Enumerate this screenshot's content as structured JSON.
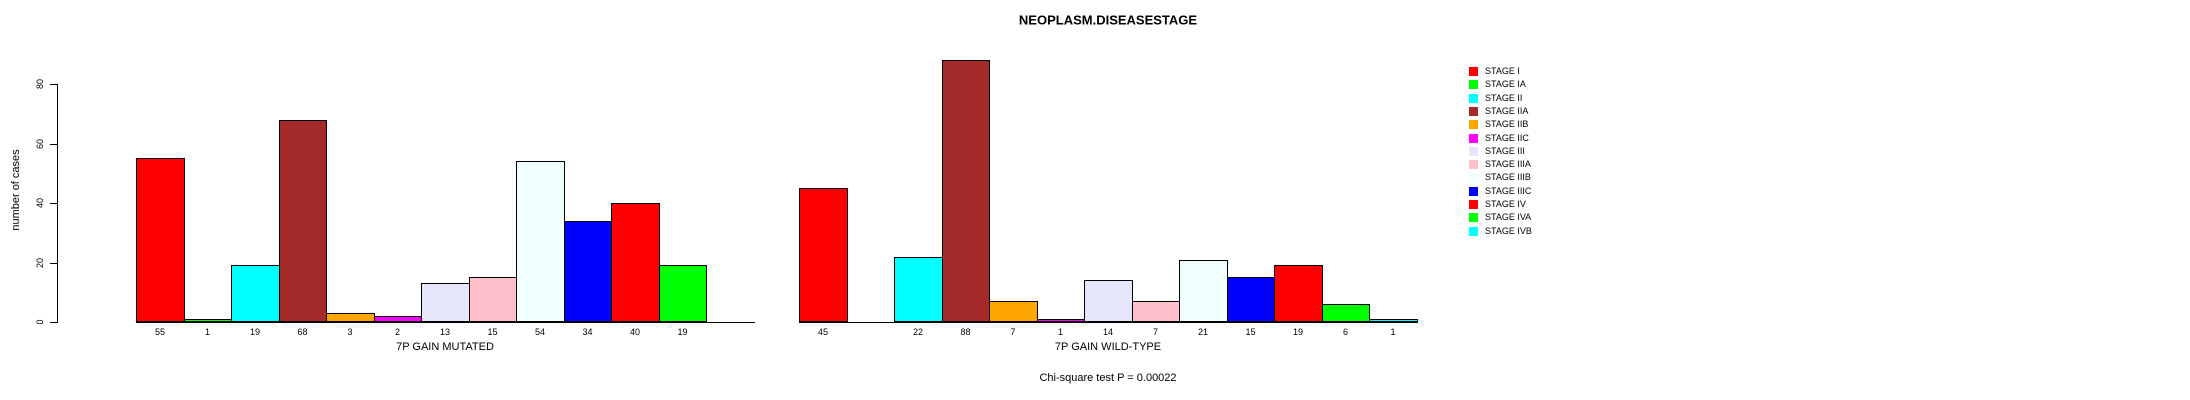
{
  "title": "NEOPLASM.DISEASESTAGE",
  "footer_note": "Chi-square test P = 0.00022",
  "y_axis": {
    "label": "number of cases",
    "ticks": [
      0,
      20,
      40,
      60,
      80
    ]
  },
  "legend": {
    "position": "right",
    "entries": [
      {
        "label": "STAGE I",
        "color": "#FF0000"
      },
      {
        "label": "STAGE IA",
        "color": "#00FF00"
      },
      {
        "label": "STAGE II",
        "color": "#00FFFF"
      },
      {
        "label": "STAGE IIA",
        "color": "#A52A2A"
      },
      {
        "label": "STAGE IIB",
        "color": "#FFA500"
      },
      {
        "label": "STAGE IIC",
        "color": "#FF00FF"
      },
      {
        "label": "STAGE III",
        "color": "#E6E6FA"
      },
      {
        "label": "STAGE IIIA",
        "color": "#FFC0CB"
      },
      {
        "label": "STAGE IIIB",
        "color": "#F0FFFF"
      },
      {
        "label": "STAGE IIIC",
        "color": "#0000FF"
      },
      {
        "label": "STAGE IV",
        "color": "#FF0000"
      },
      {
        "label": "STAGE IVA",
        "color": "#00FF00"
      },
      {
        "label": "STAGE IVB",
        "color": "#00FFFF"
      }
    ]
  },
  "chart_data": [
    {
      "type": "bar",
      "title": "NEOPLASM.DISEASESTAGE",
      "xlabel": "7P GAIN MUTATED",
      "ylabel": "number of cases",
      "ylim": [
        0,
        88
      ],
      "grid": false,
      "legend_position": "right",
      "categories": [
        "STAGE I",
        "STAGE IA",
        "STAGE II",
        "STAGE IIA",
        "STAGE IIB",
        "STAGE IIC",
        "STAGE III",
        "STAGE IIIA",
        "STAGE IIIB",
        "STAGE IIIC",
        "STAGE IV",
        "STAGE IVA",
        "STAGE IVB"
      ],
      "values": [
        55,
        1,
        19,
        68,
        3,
        2,
        13,
        15,
        54,
        34,
        40,
        19,
        0
      ],
      "bar_labels": [
        "55",
        "1",
        "19",
        "68",
        "3",
        "2",
        "13",
        "15",
        "54",
        "34",
        "40",
        "19",
        ""
      ],
      "colors": [
        "#FF0000",
        "#00FF00",
        "#00FFFF",
        "#A52A2A",
        "#FFA500",
        "#FF00FF",
        "#E6E6FA",
        "#FFC0CB",
        "#F0FFFF",
        "#0000FF",
        "#FF0000",
        "#00FF00",
        "#00FFFF"
      ]
    },
    {
      "type": "bar",
      "title": "NEOPLASM.DISEASESTAGE",
      "xlabel": "7P GAIN WILD-TYPE",
      "ylabel": "number of cases",
      "ylim": [
        0,
        88
      ],
      "grid": false,
      "legend_position": "right",
      "categories": [
        "STAGE I",
        "STAGE IA",
        "STAGE II",
        "STAGE IIA",
        "STAGE IIB",
        "STAGE IIC",
        "STAGE III",
        "STAGE IIIA",
        "STAGE IIIB",
        "STAGE IIIC",
        "STAGE IV",
        "STAGE IVA",
        "STAGE IVB"
      ],
      "values": [
        45,
        0,
        22,
        88,
        7,
        1,
        14,
        7,
        21,
        15,
        19,
        6,
        1
      ],
      "bar_labels": [
        "45",
        "",
        "22",
        "88",
        "7",
        "1",
        "14",
        "7",
        "21",
        "15",
        "19",
        "6",
        "1"
      ],
      "colors": [
        "#FF0000",
        "#00FF00",
        "#00FFFF",
        "#A52A2A",
        "#FFA500",
        "#FF00FF",
        "#E6E6FA",
        "#FFC0CB",
        "#F0FFFF",
        "#0000FF",
        "#FF0000",
        "#00FF00",
        "#00FFFF"
      ]
    }
  ]
}
